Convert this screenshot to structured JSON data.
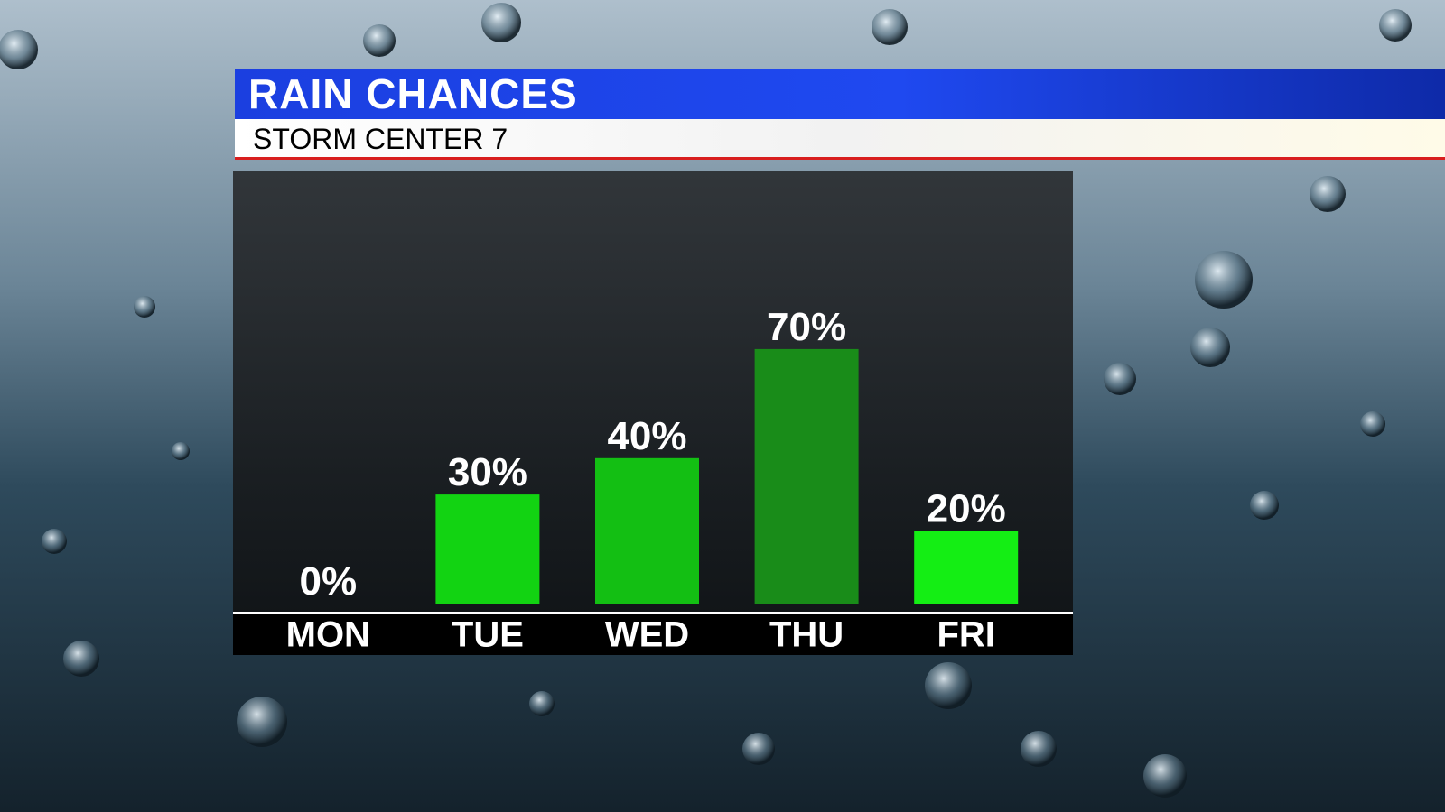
{
  "chart_data": {
    "type": "bar",
    "title": "RAIN CHANCES",
    "subtitle": "STORM CENTER 7",
    "categories": [
      "MON",
      "TUE",
      "WED",
      "THU",
      "FRI"
    ],
    "values": [
      0,
      30,
      40,
      70,
      20
    ],
    "value_labels": [
      "0%",
      "30%",
      "40%",
      "70%",
      "20%"
    ],
    "colors": [
      "#12d312",
      "#12d312",
      "#13bf13",
      "#198c19",
      "#14ee14"
    ],
    "ylim": [
      0,
      100
    ]
  }
}
